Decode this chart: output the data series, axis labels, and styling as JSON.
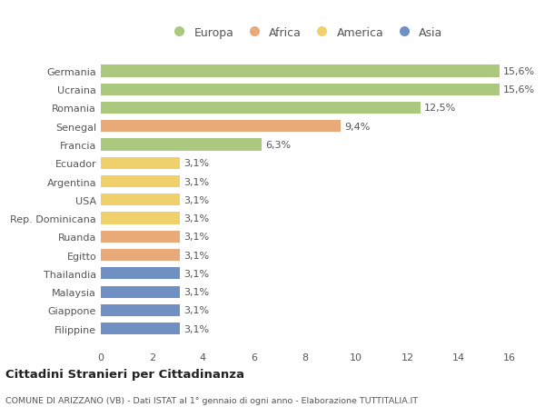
{
  "countries": [
    "Germania",
    "Ucraina",
    "Romania",
    "Senegal",
    "Francia",
    "Ecuador",
    "Argentina",
    "USA",
    "Rep. Dominicana",
    "Ruanda",
    "Egitto",
    "Thailandia",
    "Malaysia",
    "Giappone",
    "Filippine"
  ],
  "values": [
    15.6,
    15.6,
    12.5,
    9.4,
    6.3,
    3.1,
    3.1,
    3.1,
    3.1,
    3.1,
    3.1,
    3.1,
    3.1,
    3.1,
    3.1
  ],
  "labels": [
    "15,6%",
    "15,6%",
    "12,5%",
    "9,4%",
    "6,3%",
    "3,1%",
    "3,1%",
    "3,1%",
    "3,1%",
    "3,1%",
    "3,1%",
    "3,1%",
    "3,1%",
    "3,1%",
    "3,1%"
  ],
  "continents": [
    "Europa",
    "Europa",
    "Europa",
    "Africa",
    "Europa",
    "America",
    "America",
    "America",
    "America",
    "Africa",
    "Africa",
    "Asia",
    "Asia",
    "Asia",
    "Asia"
  ],
  "continent_colors": {
    "Europa": "#aac97e",
    "Africa": "#e8aa78",
    "America": "#f0d06a",
    "Asia": "#7090c4"
  },
  "legend_order": [
    "Europa",
    "Africa",
    "America",
    "Asia"
  ],
  "title": "Cittadini Stranieri per Cittadinanza",
  "subtitle": "COMUNE DI ARIZZANO (VB) - Dati ISTAT al 1° gennaio di ogni anno - Elaborazione TUTTITALIA.IT",
  "bg_color": "#ffffff",
  "plot_bg": "#f8f8f8",
  "xlim": [
    0,
    16
  ],
  "xticks": [
    0,
    2,
    4,
    6,
    8,
    10,
    12,
    14,
    16
  ],
  "bar_height": 0.65,
  "label_fontsize": 8,
  "tick_fontsize": 8,
  "legend_fontsize": 9
}
